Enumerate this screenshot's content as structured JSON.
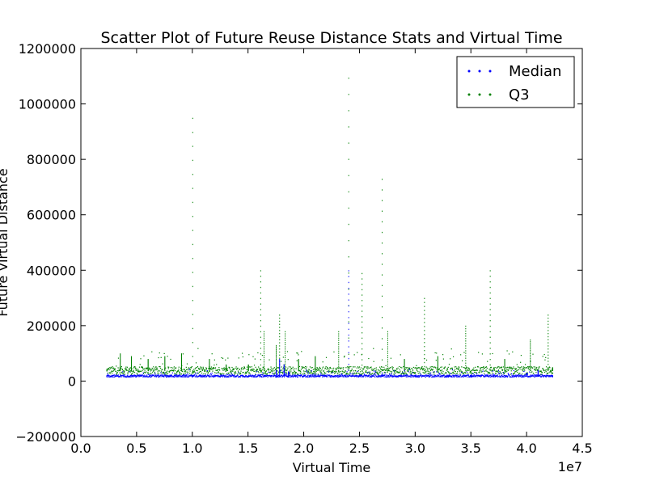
{
  "chart_data": {
    "type": "scatter",
    "title": "Scatter Plot of Future Reuse Distance Stats and Virtual Time",
    "xlabel": "Virtual Time",
    "ylabel": "Future Virtual Distance",
    "x_offset_label": "1e7",
    "xlim": [
      0,
      45000000
    ],
    "ylim": [
      -200000,
      1200000
    ],
    "x_ticks": [
      0,
      5000000,
      10000000,
      15000000,
      20000000,
      25000000,
      30000000,
      35000000,
      40000000,
      45000000
    ],
    "x_tick_labels": [
      "0.0",
      "0.5",
      "1.0",
      "1.5",
      "2.0",
      "2.5",
      "3.0",
      "3.5",
      "4.0",
      "4.5"
    ],
    "y_ticks": [
      -200000,
      0,
      200000,
      400000,
      600000,
      800000,
      1000000,
      1200000
    ],
    "y_tick_labels": [
      "−200000",
      "0",
      "200000",
      "400000",
      "600000",
      "800000",
      "1000000",
      "1200000"
    ],
    "legend_position": "top-right",
    "series": [
      {
        "name": "Median",
        "color": "#0000ff",
        "x_range": [
          2300000,
          42300000
        ],
        "baseline": 20000,
        "points": [
          [
            2300000,
            18000
          ],
          [
            5000000,
            20000
          ],
          [
            8000000,
            19000
          ],
          [
            10000000,
            22000
          ],
          [
            12000000,
            21000
          ],
          [
            15000000,
            20000
          ],
          [
            16500000,
            22000
          ],
          [
            17500000,
            40000
          ],
          [
            17800000,
            80000
          ],
          [
            18200000,
            60000
          ],
          [
            18600000,
            35000
          ],
          [
            20000000,
            22000
          ],
          [
            22000000,
            20000
          ],
          [
            24000000,
            400000
          ],
          [
            25000000,
            20000
          ],
          [
            27000000,
            25000
          ],
          [
            30000000,
            22000
          ],
          [
            33000000,
            20000
          ],
          [
            35000000,
            24000
          ],
          [
            37000000,
            22000
          ],
          [
            40000000,
            30000
          ],
          [
            41000000,
            40000
          ],
          [
            42300000,
            20000
          ]
        ]
      },
      {
        "name": "Q3",
        "color": "#008000",
        "x_range": [
          2300000,
          42300000
        ],
        "baseline": 40000,
        "points": [
          [
            2300000,
            40000
          ],
          [
            3500000,
            100000
          ],
          [
            4500000,
            90000
          ],
          [
            6000000,
            80000
          ],
          [
            7500000,
            90000
          ],
          [
            9000000,
            100000
          ],
          [
            10000000,
            950000
          ],
          [
            11500000,
            80000
          ],
          [
            13000000,
            60000
          ],
          [
            15000000,
            60000
          ],
          [
            16100000,
            400000
          ],
          [
            16400000,
            180000
          ],
          [
            17500000,
            130000
          ],
          [
            17800000,
            240000
          ],
          [
            18300000,
            180000
          ],
          [
            19500000,
            80000
          ],
          [
            21000000,
            90000
          ],
          [
            23100000,
            180000
          ],
          [
            24000000,
            1095000
          ],
          [
            25200000,
            390000
          ],
          [
            27000000,
            730000
          ],
          [
            27500000,
            180000
          ],
          [
            29000000,
            80000
          ],
          [
            30800000,
            300000
          ],
          [
            32000000,
            90000
          ],
          [
            34500000,
            200000
          ],
          [
            36700000,
            400000
          ],
          [
            38000000,
            80000
          ],
          [
            40300000,
            150000
          ],
          [
            41900000,
            240000
          ],
          [
            42300000,
            50000
          ]
        ]
      }
    ]
  }
}
